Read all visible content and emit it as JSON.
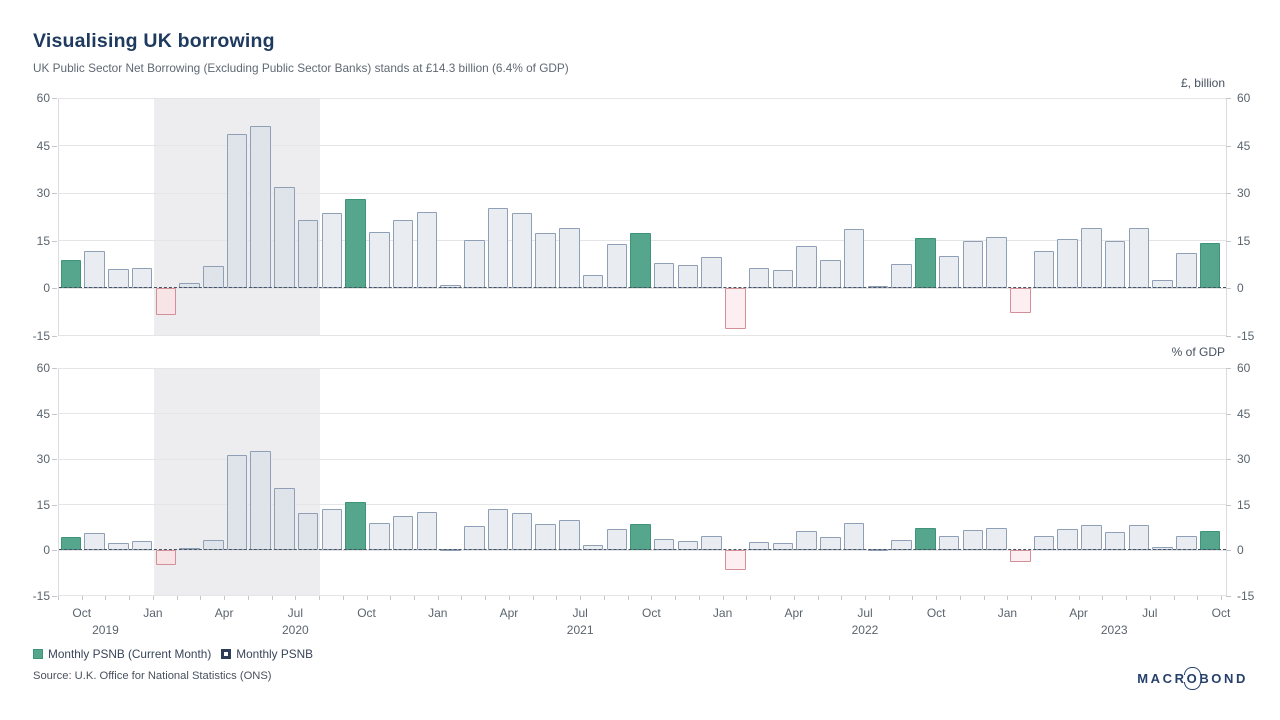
{
  "header": {
    "title": "Visualising UK borrowing",
    "subtitle": "UK Public Sector Net Borrowing (Excluding Public Sector Banks) stands at £14.3 billion (6.4% of GDP)"
  },
  "legend": {
    "items": [
      {
        "label": "Monthly PSNB (Current Month)",
        "swatch": "current"
      },
      {
        "label": "Monthly PSNB",
        "swatch": "regular"
      }
    ]
  },
  "footer": {
    "source": "Source: U.K. Office for National Statistics (ONS)",
    "brand": "MACROBOND"
  },
  "colors": {
    "accent_green": "#55a68c",
    "accent_green_border": "#3e9478",
    "bar_fill": "#e9edf2",
    "bar_border": "#8fa0b6",
    "bar_fill_shaded": "#dfe4eb",
    "negative_fill": "#fdeff1",
    "negative_fill_shaded": "#f7e4e7",
    "negative_border": "#d28f98",
    "recession_band": "#ededef",
    "grid": "#e5e5e7",
    "zero_line": "#475262",
    "axis_text": "#5a646e",
    "tick_mark": "#c6c6c8",
    "title_text": "#1e3a5f"
  },
  "chart_data": {
    "type": "bar",
    "grid": true,
    "legend_position": "bottom-left",
    "ylim": [
      -15,
      60
    ],
    "yticks": [
      60,
      45,
      30,
      15,
      0,
      -15
    ],
    "categories": [
      "Sep 2019",
      "Oct 2019",
      "Nov 2019",
      "Dec 2019",
      "Jan 2020",
      "Feb 2020",
      "Mar 2020",
      "Apr 2020",
      "May 2020",
      "Jun 2020",
      "Jul 2020",
      "Aug 2020",
      "Sep 2020",
      "Oct 2020",
      "Nov 2020",
      "Dec 2020",
      "Jan 2021",
      "Feb 2021",
      "Mar 2021",
      "Apr 2021",
      "May 2021",
      "Jun 2021",
      "Jul 2021",
      "Aug 2021",
      "Sep 2021",
      "Oct 2021",
      "Nov 2021",
      "Dec 2021",
      "Jan 2022",
      "Feb 2022",
      "Mar 2022",
      "Apr 2022",
      "May 2022",
      "Jun 2022",
      "Jul 2022",
      "Aug 2022",
      "Sep 2022",
      "Oct 2022",
      "Nov 2022",
      "Dec 2022",
      "Jan 2023",
      "Feb 2023",
      "Mar 2023",
      "Apr 2023",
      "May 2023",
      "Jun 2023",
      "Jul 2023",
      "Aug 2023",
      "Sep 2023"
    ],
    "current_month_indices": [
      0,
      12,
      24,
      36,
      48
    ],
    "recession_band": {
      "from_month": 4,
      "to_month": 11
    },
    "quarter_ticks": [
      {
        "label": "Oct",
        "month": 1
      },
      {
        "label": "Jan",
        "month": 4
      },
      {
        "label": "Apr",
        "month": 7
      },
      {
        "label": "Jul",
        "month": 10
      },
      {
        "label": "Oct",
        "month": 13
      },
      {
        "label": "Jan",
        "month": 16
      },
      {
        "label": "Apr",
        "month": 19
      },
      {
        "label": "Jul",
        "month": 22
      },
      {
        "label": "Oct",
        "month": 25
      },
      {
        "label": "Jan",
        "month": 28
      },
      {
        "label": "Apr",
        "month": 31
      },
      {
        "label": "Jul",
        "month": 34
      },
      {
        "label": "Oct",
        "month": 37
      },
      {
        "label": "Jan",
        "month": 40
      },
      {
        "label": "Apr",
        "month": 43
      },
      {
        "label": "Jul",
        "month": 46
      },
      {
        "label": "Oct",
        "month": 49
      }
    ],
    "year_labels": [
      {
        "label": "2019",
        "from": 0,
        "to": 4
      },
      {
        "label": "2020",
        "from": 4,
        "to": 16
      },
      {
        "label": "2021",
        "from": 16,
        "to": 28
      },
      {
        "label": "2022",
        "from": 28,
        "to": 40
      },
      {
        "label": "2023",
        "from": 40,
        "to": 49
      }
    ],
    "series": [
      {
        "name": "Monthly PSNB",
        "unit_label": "£, billion",
        "values": [
          9.0,
          11.8,
          5.9,
          6.2,
          -8.4,
          1.6,
          6.8,
          48.7,
          51.1,
          31.8,
          21.5,
          23.7,
          28.1,
          17.8,
          21.6,
          24.0,
          0.8,
          15.3,
          25.2,
          23.7,
          17.3,
          18.8,
          4.2,
          13.8,
          17.4,
          7.9,
          7.3,
          9.7,
          -12.9,
          6.3,
          5.6,
          13.2,
          8.8,
          18.6,
          0.7,
          7.7,
          15.7,
          10.0,
          14.8,
          16.0,
          -8.0,
          11.7,
          15.6,
          18.9,
          14.7,
          18.9,
          2.4,
          11.1,
          14.3
        ]
      },
      {
        "name": "Monthly PSNB",
        "unit_label": "% of GDP",
        "values": [
          4.4,
          5.6,
          2.4,
          3.0,
          -4.8,
          0.5,
          3.2,
          31.3,
          32.6,
          20.3,
          12.2,
          13.4,
          15.9,
          8.8,
          11.1,
          12.6,
          0.4,
          7.9,
          13.6,
          12.2,
          8.5,
          9.8,
          1.6,
          6.9,
          8.5,
          3.7,
          3.1,
          4.5,
          -6.7,
          2.7,
          2.2,
          6.3,
          4.2,
          8.8,
          0.2,
          3.2,
          7.4,
          4.5,
          6.5,
          7.3,
          -4.0,
          4.7,
          6.9,
          8.2,
          6.0,
          8.4,
          0.9,
          4.5,
          6.4
        ]
      }
    ]
  }
}
